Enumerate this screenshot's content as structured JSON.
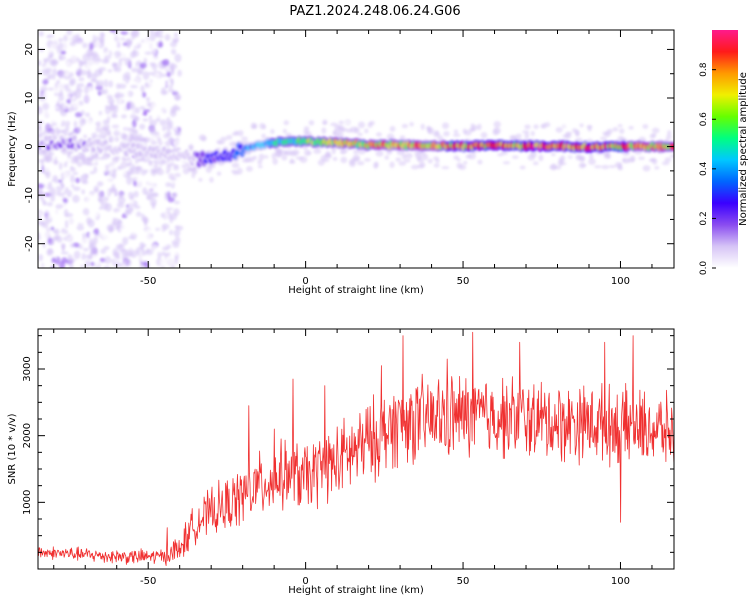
{
  "title": "PAZ1.2024.248.06.24.G06",
  "chart_data": [
    {
      "type": "heatmap",
      "xlabel": "Height of straight line (km)",
      "ylabel": "Frequency (Hz)",
      "xlim": [
        -85,
        117
      ],
      "ylim": [
        -25,
        24
      ],
      "xticks": [
        -50,
        0,
        50,
        100
      ],
      "yticks": [
        -20,
        -10,
        0,
        10,
        20
      ],
      "colorbar": {
        "label": "Normalized spectral amplitude",
        "range": [
          0.0,
          0.96
        ],
        "ticks": [
          "0.0",
          "0.2",
          "0.4",
          "0.6",
          "0.8"
        ],
        "colors": [
          "#ffffff",
          "#d6c4f6",
          "#8a4cf0",
          "#3a00ff",
          "#0066ff",
          "#00c8ff",
          "#00ff80",
          "#66ff00",
          "#f0f000",
          "#ff9900",
          "#ff1a1a",
          "#ff1a8c"
        ]
      },
      "ridge_frequency": {
        "x": [
          -85,
          -75,
          -65,
          -55,
          -45,
          -35,
          -30,
          -25,
          -20,
          -15,
          -10,
          -5,
          0,
          5,
          10,
          20,
          30,
          40,
          50,
          60,
          70,
          80,
          90,
          100,
          110,
          117
        ],
        "y": [
          0.5,
          0.8,
          0.2,
          -0.8,
          -1.5,
          -2.5,
          -2.8,
          -1.5,
          -0.6,
          0.3,
          0.9,
          1.2,
          1.0,
          1.0,
          0.8,
          0.4,
          0.3,
          0.2,
          0.1,
          0.3,
          0.1,
          0.1,
          -0.1,
          0.0,
          0.0,
          0.0
        ]
      },
      "ridge_amplitude": {
        "x": [
          -85,
          -75,
          -65,
          -55,
          -45,
          -35,
          -30,
          -25,
          -20,
          -15,
          -10,
          -5,
          0,
          5,
          10,
          20,
          30,
          40,
          50,
          60,
          70,
          80,
          90,
          100,
          110,
          117
        ],
        "y": [
          0.15,
          0.15,
          0.12,
          0.1,
          0.1,
          0.15,
          0.3,
          0.3,
          0.35,
          0.45,
          0.55,
          0.6,
          0.65,
          0.7,
          0.75,
          0.8,
          0.85,
          0.85,
          0.9,
          0.9,
          0.92,
          0.95,
          0.9,
          0.88,
          0.85,
          0.85
        ]
      }
    },
    {
      "type": "line",
      "xlabel": "Height of straight line (km)",
      "ylabel": "SNR (10 * v/v)",
      "xlim": [
        -85,
        117
      ],
      "ylim": [
        0,
        3600
      ],
      "xticks": [
        -50,
        0,
        50,
        100
      ],
      "yticks": [
        1000,
        2000,
        3000
      ],
      "color": "#f03030",
      "envelope": {
        "x": [
          -85,
          -75,
          -65,
          -55,
          -45,
          -40,
          -35,
          -30,
          -25,
          -20,
          -15,
          -10,
          -5,
          0,
          5,
          10,
          15,
          20,
          25,
          30,
          40,
          50,
          60,
          70,
          80,
          90,
          100,
          110,
          117
        ],
        "y": [
          250,
          230,
          200,
          180,
          190,
          300,
          700,
          850,
          950,
          1100,
          1250,
          1350,
          1450,
          1350,
          1500,
          1600,
          1750,
          1900,
          2050,
          2200,
          2250,
          2300,
          2300,
          2250,
          2200,
          2200,
          2150,
          2100,
          2050
        ]
      },
      "spread": {
        "x": [
          -85,
          -45,
          -40,
          -30,
          -20,
          -10,
          0,
          20,
          40,
          60,
          80,
          100,
          117
        ],
        "y": [
          80,
          100,
          200,
          300,
          380,
          420,
          450,
          520,
          540,
          520,
          500,
          480,
          450
        ]
      },
      "spikes": [
        {
          "x": -44,
          "y": 620
        },
        {
          "x": -18,
          "y": 2450
        },
        {
          "x": -10,
          "y": 2100
        },
        {
          "x": -4,
          "y": 2850
        },
        {
          "x": 6,
          "y": 2750
        },
        {
          "x": 24,
          "y": 3050
        },
        {
          "x": 31,
          "y": 3500
        },
        {
          "x": 45,
          "y": 3150
        },
        {
          "x": 53,
          "y": 3550
        },
        {
          "x": 68,
          "y": 3400
        },
        {
          "x": 95,
          "y": 3400
        },
        {
          "x": 104,
          "y": 3500
        },
        {
          "x": 100,
          "y": 700
        }
      ]
    }
  ]
}
